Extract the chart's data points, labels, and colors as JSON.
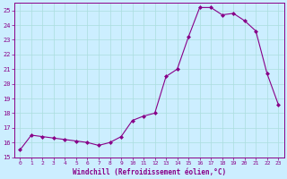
{
  "x": [
    0,
    1,
    2,
    3,
    4,
    5,
    6,
    7,
    8,
    9,
    10,
    11,
    12,
    13,
    14,
    15,
    16,
    17,
    18,
    19,
    20,
    21,
    22,
    23
  ],
  "y": [
    15.5,
    16.5,
    16.4,
    16.3,
    16.2,
    16.1,
    16.0,
    15.8,
    16.0,
    16.4,
    17.5,
    17.8,
    18.0,
    20.5,
    21.0,
    23.2,
    25.2,
    25.2,
    24.7,
    24.8,
    24.3,
    23.6,
    20.7,
    18.6
  ],
  "line_color": "#880088",
  "marker": "D",
  "marker_size": 2.0,
  "xlim": [
    -0.5,
    23.5
  ],
  "ylim": [
    15,
    25.5
  ],
  "yticks": [
    15,
    16,
    17,
    18,
    19,
    20,
    21,
    22,
    23,
    24,
    25
  ],
  "xticks": [
    0,
    1,
    2,
    3,
    4,
    5,
    6,
    7,
    8,
    9,
    10,
    11,
    12,
    13,
    14,
    15,
    16,
    17,
    18,
    19,
    20,
    21,
    22,
    23
  ],
  "xlabel": "Windchill (Refroidissement éolien,°C)",
  "bg_color": "#cceeff",
  "grid_color": "#aadddd",
  "text_color": "#880088",
  "tick_color": "#880088"
}
